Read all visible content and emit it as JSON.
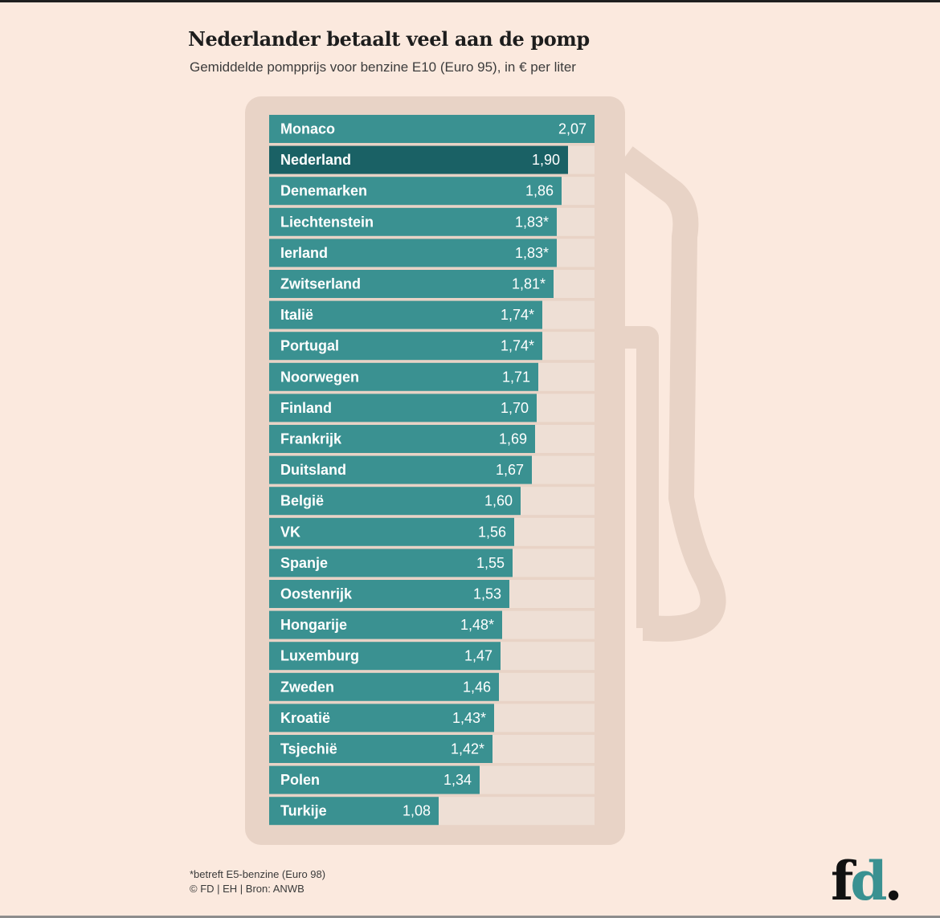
{
  "header": {
    "title": "Nederlander betaalt veel aan de pomp",
    "subtitle": "Gemiddelde pompprijs voor benzine E10 (Euro 95), in € per liter"
  },
  "footer": {
    "note": "*betreft E5-benzine (Euro 98)",
    "credit": "© FD | EH | Bron: ANWB"
  },
  "logo": {
    "f": "f",
    "d": "d",
    "dot": "."
  },
  "colors": {
    "background": "#fbe9de",
    "bar": "#3a9191",
    "highlight_bar": "#1a6165",
    "track": "#eedfd5",
    "pump": "#e8d3c6"
  },
  "chart_data": {
    "type": "bar",
    "orientation": "horizontal",
    "categories": [
      "Monaco",
      "Nederland",
      "Denemarken",
      "Liechtenstein",
      "Ierland",
      "Zwitserland",
      "Italië",
      "Portugal",
      "Noorwegen",
      "Finland",
      "Frankrijk",
      "Duitsland",
      "België",
      "VK",
      "Spanje",
      "Oostenrijk",
      "Hongarije",
      "Luxemburg",
      "Zweden",
      "Kroatië",
      "Tsjechië",
      "Polen",
      "Turkije"
    ],
    "values": [
      2.07,
      1.9,
      1.86,
      1.83,
      1.83,
      1.81,
      1.74,
      1.74,
      1.71,
      1.7,
      1.69,
      1.67,
      1.6,
      1.56,
      1.55,
      1.53,
      1.48,
      1.47,
      1.46,
      1.43,
      1.42,
      1.34,
      1.08
    ],
    "value_labels": [
      "2,07",
      "1,90",
      "1,86",
      "1,83*",
      "1,83*",
      "1,81*",
      "1,74*",
      "1,74*",
      "1,71",
      "1,70",
      "1,69",
      "1,67",
      "1,60",
      "1,56",
      "1,55",
      "1,53",
      "1,48*",
      "1,47",
      "1,46",
      "1,43*",
      "1,42*",
      "1,34",
      "1,08"
    ],
    "highlight": "Nederland",
    "xlim": [
      0,
      2.07
    ],
    "title": "Nederlander betaalt veel aan de pomp",
    "subtitle": "Gemiddelde pompprijs voor benzine E10 (Euro 95), in € per liter",
    "xlabel": "",
    "ylabel": ""
  }
}
